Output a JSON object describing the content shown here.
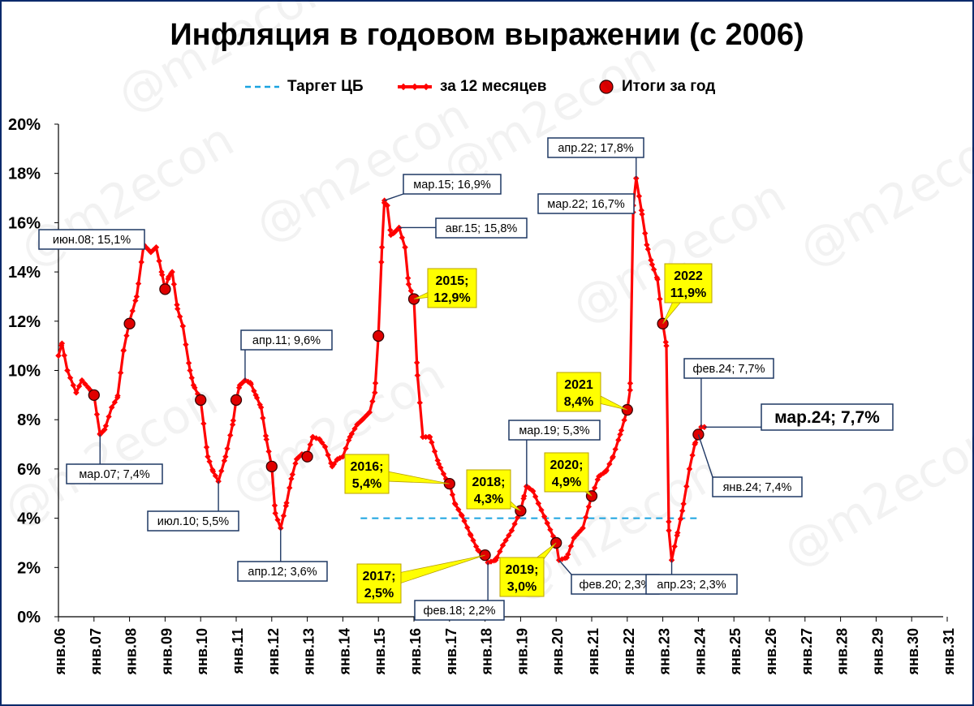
{
  "title": "Инфляция в годовом выражении (с 2006)",
  "watermark": "@m2econ",
  "legend": {
    "target": "Таргет ЦБ",
    "monthly": "за 12 месяцев",
    "annual": "Итоги за год"
  },
  "colors": {
    "line": "#ff0000",
    "target": "#1aa3e0",
    "dot_fill": "#e00000",
    "callout_yellow": "#ffff00",
    "callout_border": "#1f3864",
    "watermark": "#000000"
  },
  "chart_data": {
    "type": "line",
    "title": "Инфляция в годовом выражении (с 2006)",
    "xlabel": "",
    "ylabel": "",
    "x_unit": "years since 2006 (январь = .0)",
    "ylim": [
      0,
      20
    ],
    "y_ticks": [
      "0%",
      "2%",
      "4%",
      "6%",
      "8%",
      "10%",
      "12%",
      "14%",
      "16%",
      "18%",
      "20%"
    ],
    "x_ticks": [
      "янв.06",
      "янв.07",
      "янв.08",
      "янв.09",
      "янв.10",
      "янв.11",
      "янв.12",
      "янв.13",
      "янв.14",
      "янв.15",
      "янв.16",
      "янв.17",
      "янв.18",
      "янв.19",
      "янв.20",
      "янв.21",
      "янв.22",
      "янв.23",
      "янв.24",
      "янв.25",
      "янв.26",
      "янв.27",
      "янв.28",
      "янв.29",
      "янв.30",
      "янв.31"
    ],
    "grid": false,
    "legend_position": "top",
    "target": {
      "value": 4,
      "from": 8.5,
      "to": 18.0
    },
    "monthly_keypoints": [
      [
        0.0,
        10.6
      ],
      [
        0.1,
        11.1
      ],
      [
        0.25,
        10.0
      ],
      [
        0.5,
        9.1
      ],
      [
        0.66,
        9.6
      ],
      [
        0.9,
        9.2
      ],
      [
        1.0,
        9.0
      ],
      [
        1.17,
        7.4
      ],
      [
        1.3,
        7.6
      ],
      [
        1.5,
        8.5
      ],
      [
        1.66,
        8.9
      ],
      [
        1.83,
        10.8
      ],
      [
        2.0,
        12.0
      ],
      [
        2.2,
        13.0
      ],
      [
        2.4,
        15.1
      ],
      [
        2.6,
        14.8
      ],
      [
        2.75,
        15.0
      ],
      [
        2.9,
        14.0
      ],
      [
        3.0,
        13.3
      ],
      [
        3.1,
        13.8
      ],
      [
        3.2,
        14.0
      ],
      [
        3.35,
        12.5
      ],
      [
        3.5,
        11.8
      ],
      [
        3.7,
        10.0
      ],
      [
        3.8,
        9.4
      ],
      [
        4.0,
        8.8
      ],
      [
        4.2,
        6.5
      ],
      [
        4.35,
        5.9
      ],
      [
        4.5,
        5.5
      ],
      [
        4.7,
        6.5
      ],
      [
        4.9,
        7.8
      ],
      [
        5.0,
        8.8
      ],
      [
        5.1,
        9.4
      ],
      [
        5.25,
        9.6
      ],
      [
        5.4,
        9.5
      ],
      [
        5.55,
        9.0
      ],
      [
        5.7,
        8.5
      ],
      [
        5.85,
        7.2
      ],
      [
        6.0,
        6.1
      ],
      [
        6.1,
        4.2
      ],
      [
        6.25,
        3.6
      ],
      [
        6.4,
        4.5
      ],
      [
        6.55,
        5.6
      ],
      [
        6.7,
        6.4
      ],
      [
        6.85,
        6.6
      ],
      [
        7.0,
        6.6
      ],
      [
        7.15,
        7.3
      ],
      [
        7.35,
        7.2
      ],
      [
        7.5,
        6.9
      ],
      [
        7.7,
        6.1
      ],
      [
        7.85,
        6.4
      ],
      [
        8.0,
        6.5
      ],
      [
        8.2,
        7.3
      ],
      [
        8.4,
        7.8
      ],
      [
        8.55,
        8.0
      ],
      [
        8.75,
        8.3
      ],
      [
        8.9,
        9.1
      ],
      [
        9.0,
        11.4
      ],
      [
        9.1,
        15.0
      ],
      [
        9.17,
        16.9
      ],
      [
        9.25,
        16.7
      ],
      [
        9.35,
        15.5
      ],
      [
        9.45,
        15.6
      ],
      [
        9.58,
        15.8
      ],
      [
        9.75,
        15.0
      ],
      [
        9.85,
        13.5
      ],
      [
        10.0,
        12.9
      ],
      [
        10.1,
        9.8
      ],
      [
        10.25,
        7.3
      ],
      [
        10.45,
        7.3
      ],
      [
        10.7,
        6.2
      ],
      [
        10.9,
        5.6
      ],
      [
        11.0,
        5.4
      ],
      [
        11.15,
        4.6
      ],
      [
        11.35,
        4.1
      ],
      [
        11.6,
        3.3
      ],
      [
        11.8,
        2.7
      ],
      [
        12.0,
        2.5
      ],
      [
        12.08,
        2.2
      ],
      [
        12.3,
        2.3
      ],
      [
        12.5,
        2.9
      ],
      [
        12.75,
        3.5
      ],
      [
        13.0,
        4.3
      ],
      [
        13.1,
        4.9
      ],
      [
        13.17,
        5.3
      ],
      [
        13.35,
        5.1
      ],
      [
        13.5,
        4.6
      ],
      [
        13.75,
        3.8
      ],
      [
        14.0,
        3.0
      ],
      [
        14.08,
        2.3
      ],
      [
        14.3,
        2.4
      ],
      [
        14.5,
        3.2
      ],
      [
        14.75,
        3.6
      ],
      [
        15.0,
        4.9
      ],
      [
        15.2,
        5.7
      ],
      [
        15.4,
        5.9
      ],
      [
        15.6,
        6.5
      ],
      [
        15.8,
        7.4
      ],
      [
        16.0,
        8.4
      ],
      [
        16.08,
        9.2
      ],
      [
        16.17,
        16.7
      ],
      [
        16.25,
        17.8
      ],
      [
        16.4,
        16.5
      ],
      [
        16.55,
        15.1
      ],
      [
        16.7,
        14.3
      ],
      [
        16.85,
        13.7
      ],
      [
        17.0,
        11.9
      ],
      [
        17.1,
        11.0
      ],
      [
        17.17,
        3.5
      ],
      [
        17.25,
        2.3
      ],
      [
        17.4,
        3.3
      ],
      [
        17.55,
        4.3
      ],
      [
        17.75,
        6.0
      ],
      [
        17.9,
        7.0
      ],
      [
        18.0,
        7.4
      ],
      [
        18.08,
        7.7
      ],
      [
        18.17,
        7.7
      ]
    ],
    "annual_points": [
      [
        1,
        9.0
      ],
      [
        2,
        11.9
      ],
      [
        3,
        13.3
      ],
      [
        4,
        8.8
      ],
      [
        5,
        8.8
      ],
      [
        6,
        6.1
      ],
      [
        7,
        6.5
      ],
      [
        9,
        11.4
      ],
      [
        10,
        12.9
      ],
      [
        11,
        5.4
      ],
      [
        12,
        2.5
      ],
      [
        13,
        4.3
      ],
      [
        14,
        3.0
      ],
      [
        15,
        4.9
      ],
      [
        16,
        8.4
      ],
      [
        17,
        11.9
      ],
      [
        18,
        7.4
      ]
    ],
    "annotations": [
      {
        "text": "июн.08; 15,1%",
        "x": 2.42,
        "y": 15.1,
        "style": "white"
      },
      {
        "text": "мар.07; 7,4%",
        "x": 1.17,
        "y": 7.4,
        "style": "white"
      },
      {
        "text": "июл.10; 5,5%",
        "x": 4.5,
        "y": 5.5,
        "style": "white"
      },
      {
        "text": "апр.11; 9,6%",
        "x": 5.25,
        "y": 9.6,
        "style": "white"
      },
      {
        "text": "апр.12; 3,6%",
        "x": 6.25,
        "y": 3.6,
        "style": "white"
      },
      {
        "text": "мар.15; 16,9%",
        "x": 9.17,
        "y": 16.9,
        "style": "white"
      },
      {
        "text": "авг.15; 15,8%",
        "x": 9.58,
        "y": 15.8,
        "style": "white"
      },
      {
        "text": "фев.18; 2,2%",
        "x": 12.08,
        "y": 2.2,
        "style": "white"
      },
      {
        "text": "мар.19; 5,3%",
        "x": 13.17,
        "y": 5.3,
        "style": "white"
      },
      {
        "text": "фев.20; 2,3%",
        "x": 14.08,
        "y": 2.3,
        "style": "white"
      },
      {
        "text": "апр.22; 17,8%",
        "x": 16.25,
        "y": 17.8,
        "style": "white"
      },
      {
        "text": "мар.22; 16,7%",
        "x": 16.17,
        "y": 16.7,
        "style": "white"
      },
      {
        "text": "апр.23; 2,3%",
        "x": 17.25,
        "y": 2.3,
        "style": "white"
      },
      {
        "text": "фев.24; 7,7%",
        "x": 18.08,
        "y": 7.7,
        "style": "white"
      },
      {
        "text": "янв.24; 7,4%",
        "x": 18.0,
        "y": 7.4,
        "style": "white"
      },
      {
        "text": "мар.24; 7,7%",
        "x": 18.17,
        "y": 7.7,
        "style": "white-large"
      },
      {
        "lines": [
          "2015;",
          "12,9%"
        ],
        "x": 10.0,
        "y": 12.9,
        "style": "yellow"
      },
      {
        "lines": [
          "2016;",
          "5,4%"
        ],
        "x": 11.0,
        "y": 5.4,
        "style": "yellow"
      },
      {
        "lines": [
          "2017;",
          "2,5%"
        ],
        "x": 12.0,
        "y": 2.5,
        "style": "yellow"
      },
      {
        "lines": [
          "2018;",
          "4,3%"
        ],
        "x": 13.0,
        "y": 4.3,
        "style": "yellow"
      },
      {
        "lines": [
          "2019;",
          "3,0%"
        ],
        "x": 14.0,
        "y": 3.0,
        "style": "yellow"
      },
      {
        "lines": [
          "2020;",
          "4,9%"
        ],
        "x": 15.0,
        "y": 4.9,
        "style": "yellow"
      },
      {
        "lines": [
          "2021",
          "8,4%"
        ],
        "x": 16.0,
        "y": 8.4,
        "style": "yellow"
      },
      {
        "lines": [
          "2022",
          "11,9%"
        ],
        "x": 17.0,
        "y": 11.9,
        "style": "yellow"
      }
    ]
  }
}
